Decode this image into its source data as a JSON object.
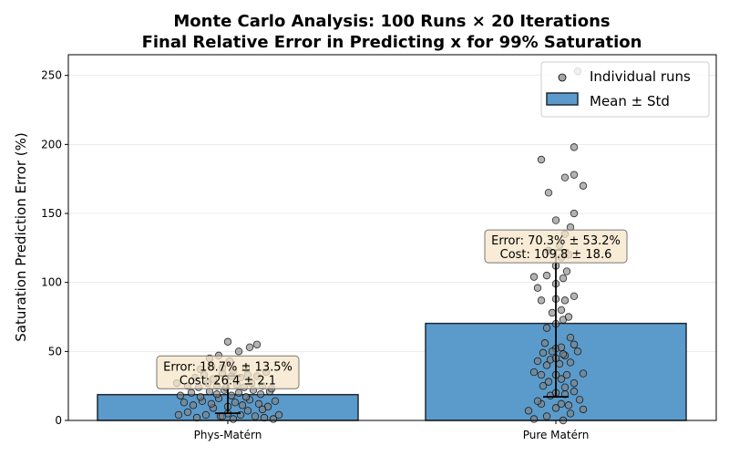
{
  "chart_data": {
    "type": "bar",
    "title": "Monte Carlo Analysis: 100 Runs × 20 Iterations",
    "subtitle": "Final Relative Error in Predicting x for 99% Saturation",
    "xlabel": "",
    "ylabel": "Saturation Prediction Error (%)",
    "ylim": [
      0,
      265
    ],
    "yticks": [
      0,
      50,
      100,
      150,
      200,
      250
    ],
    "grid": true,
    "legend_position": "top-right",
    "categories": [
      "Phys-Matérn",
      "Pure Matérn"
    ],
    "series": [
      {
        "name": "Mean ± Std",
        "values": [
          18.7,
          70.3
        ],
        "errors": [
          13.5,
          53.2
        ],
        "color": "#5b9bcb"
      }
    ],
    "scatter_series": {
      "name": "Individual runs",
      "color": "#555555"
    },
    "points": [
      [
        [
          -0.27,
          4
        ],
        [
          -0.22,
          6
        ],
        [
          -0.17,
          2
        ],
        [
          -0.12,
          4
        ],
        [
          -0.08,
          9
        ],
        [
          -0.04,
          3
        ],
        [
          0.0,
          5
        ],
        [
          0.03,
          1
        ],
        [
          0.07,
          4
        ],
        [
          0.11,
          7
        ],
        [
          0.15,
          3
        ],
        [
          0.2,
          2
        ],
        [
          0.25,
          1
        ],
        [
          0.28,
          4
        ],
        [
          -0.24,
          13
        ],
        [
          -0.19,
          11
        ],
        [
          -0.14,
          14
        ],
        [
          -0.09,
          12
        ],
        [
          -0.05,
          16
        ],
        [
          0.0,
          10
        ],
        [
          0.04,
          13
        ],
        [
          0.08,
          11
        ],
        [
          0.12,
          15
        ],
        [
          0.17,
          12
        ],
        [
          0.22,
          10
        ],
        [
          0.26,
          14
        ],
        [
          -0.26,
          18
        ],
        [
          -0.2,
          20
        ],
        [
          -0.15,
          17
        ],
        [
          -0.1,
          21
        ],
        [
          -0.06,
          19
        ],
        [
          -0.02,
          22
        ],
        [
          0.02,
          18
        ],
        [
          0.06,
          20
        ],
        [
          0.1,
          17
        ],
        [
          0.14,
          22
        ],
        [
          0.18,
          19
        ],
        [
          0.23,
          21
        ],
        [
          -0.22,
          25
        ],
        [
          -0.16,
          24
        ],
        [
          -0.11,
          27
        ],
        [
          -0.06,
          25
        ],
        [
          -0.01,
          24
        ],
        [
          0.05,
          26
        ],
        [
          0.09,
          24
        ],
        [
          0.13,
          27
        ],
        [
          0.19,
          25
        ],
        [
          0.24,
          23
        ],
        [
          -0.18,
          31
        ],
        [
          -0.13,
          33
        ],
        [
          -0.08,
          30
        ],
        [
          -0.03,
          34
        ],
        [
          0.02,
          32
        ],
        [
          0.07,
          31
        ],
        [
          0.11,
          33
        ],
        [
          0.16,
          32
        ],
        [
          0.21,
          35
        ],
        [
          -0.28,
          27
        ],
        [
          -0.15,
          37
        ],
        [
          -0.09,
          39
        ],
        [
          -0.03,
          38
        ],
        [
          0.03,
          36
        ],
        [
          0.1,
          38
        ],
        [
          -0.1,
          45
        ],
        [
          -0.05,
          47
        ],
        [
          0.01,
          43
        ],
        [
          0.06,
          50
        ],
        [
          0.12,
          53
        ],
        [
          0.16,
          55
        ],
        [
          0.0,
          57
        ],
        [
          -0.03,
          3
        ],
        [
          0.19,
          8
        ]
      ],
      [
        [
          -0.12,
          1
        ],
        [
          -0.05,
          3
        ],
        [
          0.0,
          9
        ],
        [
          0.04,
          0
        ],
        [
          -0.15,
          7
        ],
        [
          0.08,
          5
        ],
        [
          0.15,
          8
        ],
        [
          -0.08,
          12
        ],
        [
          0.03,
          12
        ],
        [
          0.07,
          11
        ],
        [
          0.13,
          15
        ],
        [
          -0.03,
          18
        ],
        [
          0.05,
          19
        ],
        [
          -0.1,
          14
        ],
        [
          0.1,
          21
        ],
        [
          0.0,
          20
        ],
        [
          -0.07,
          25
        ],
        [
          0.05,
          24
        ],
        [
          0.1,
          27
        ],
        [
          -0.04,
          28
        ],
        [
          0.03,
          30
        ],
        [
          -0.08,
          33
        ],
        [
          0.0,
          33
        ],
        [
          0.06,
          33
        ],
        [
          -0.12,
          35
        ],
        [
          0.15,
          34
        ],
        [
          -0.05,
          40
        ],
        [
          0.02,
          41
        ],
        [
          0.08,
          42
        ],
        [
          -0.1,
          43
        ],
        [
          -0.03,
          44
        ],
        [
          0.05,
          47
        ],
        [
          -0.07,
          49
        ],
        [
          0.0,
          52
        ],
        [
          0.03,
          53
        ],
        [
          0.1,
          55
        ],
        [
          -0.02,
          50
        ],
        [
          0.04,
          48
        ],
        [
          0.12,
          50
        ],
        [
          -0.06,
          56
        ],
        [
          0.08,
          60
        ],
        [
          -0.05,
          67
        ],
        [
          0.0,
          70
        ],
        [
          0.04,
          73
        ],
        [
          0.07,
          75
        ],
        [
          -0.02,
          78
        ],
        [
          0.03,
          80
        ],
        [
          -0.08,
          87
        ],
        [
          0.0,
          88
        ],
        [
          0.05,
          87
        ],
        [
          0.1,
          90
        ],
        [
          -0.1,
          96
        ],
        [
          0.0,
          99
        ],
        [
          0.04,
          103
        ],
        [
          0.06,
          108
        ],
        [
          -0.05,
          105
        ],
        [
          0.0,
          112
        ],
        [
          0.03,
          118
        ],
        [
          0.07,
          120
        ],
        [
          -0.04,
          123
        ],
        [
          0.02,
          127
        ],
        [
          0.05,
          135
        ],
        [
          0.08,
          140
        ],
        [
          0.0,
          145
        ],
        [
          0.1,
          150
        ],
        [
          -0.04,
          165
        ],
        [
          0.05,
          176
        ],
        [
          0.1,
          178
        ],
        [
          0.15,
          170
        ],
        [
          -0.08,
          189
        ],
        [
          0.1,
          198
        ],
        [
          0.12,
          253
        ],
        [
          0.0,
          45
        ],
        [
          -0.12,
          104
        ]
      ]
    ],
    "annotations": [
      {
        "line1": "Error: 18.7% ± 13.5%",
        "line2": "Cost: 26.4 ± 2.1"
      },
      {
        "line1": "Error: 70.3% ± 53.2%",
        "line2": "Cost: 109.8 ± 18.6"
      }
    ],
    "legend": [
      "Individual runs",
      "Mean ± Std"
    ]
  }
}
